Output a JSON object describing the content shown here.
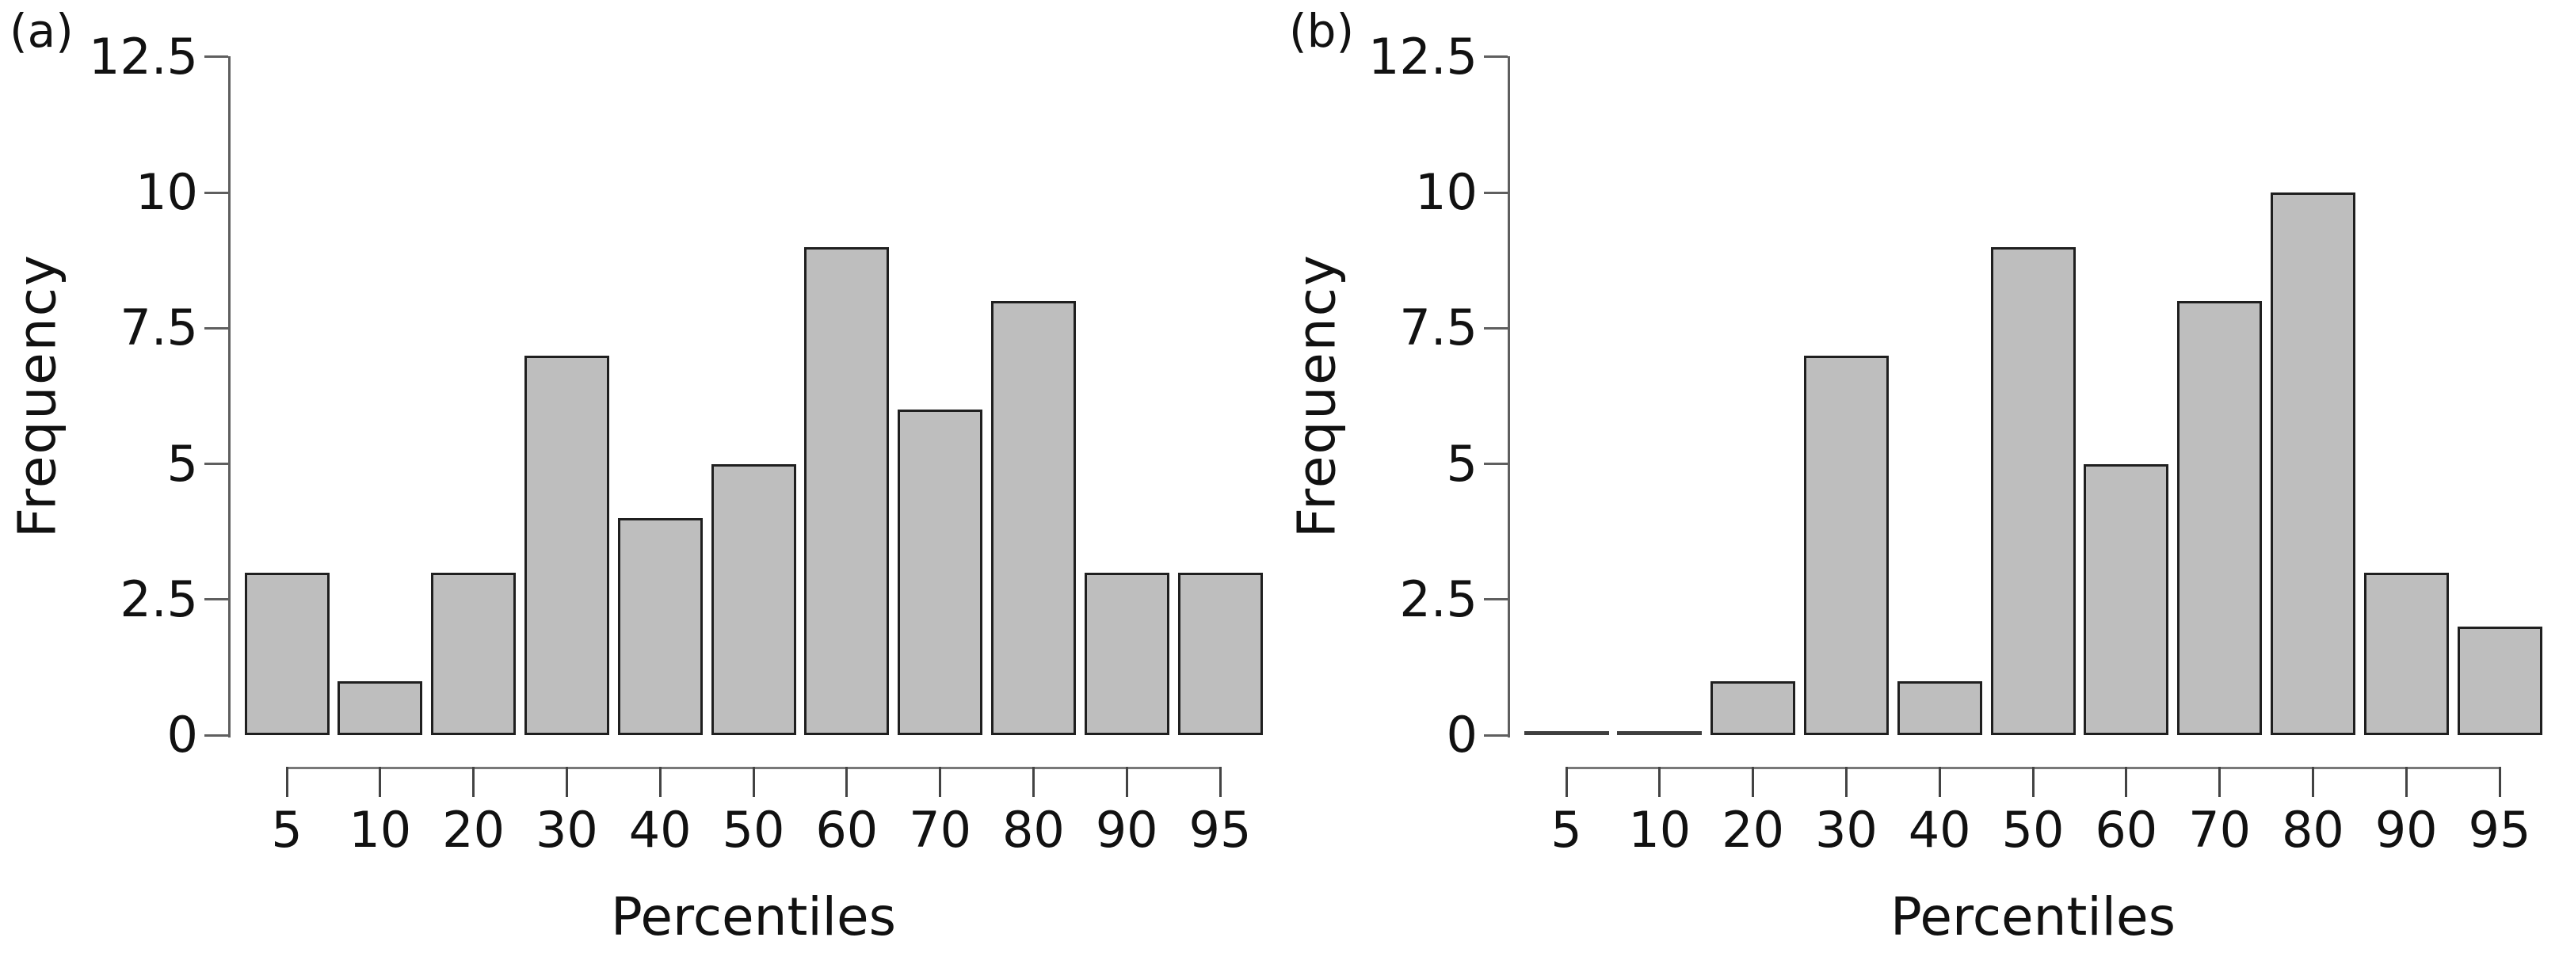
{
  "figure": {
    "colors": {
      "bar_fill": "#bebebe",
      "bar_border": "#1f1f1f",
      "axis_line": "#5f5f5f",
      "x_axis_line": "#787878",
      "tick": "#434343",
      "text": "#111111",
      "background": "#ffffff"
    }
  },
  "chart_data": [
    {
      "type": "bar",
      "panel_label": "(a)",
      "title": "",
      "xlabel": "Percentiles",
      "ylabel": "Frequency",
      "categories": [
        "5",
        "10",
        "20",
        "30",
        "40",
        "50",
        "60",
        "70",
        "80",
        "90",
        "95"
      ],
      "values": [
        3,
        1,
        3,
        7,
        4,
        5,
        9,
        6,
        8,
        3,
        3
      ],
      "ytick_labels": [
        "0",
        "2.5",
        "5",
        "7.5",
        "10",
        "12.5"
      ],
      "yticks": [
        0,
        2.5,
        5,
        7.5,
        10,
        12.5
      ],
      "ylim": [
        0,
        12.5
      ],
      "grid": false,
      "legend": "none"
    },
    {
      "type": "bar",
      "panel_label": "(b)",
      "title": "",
      "xlabel": "Percentiles",
      "ylabel": "Frequency",
      "categories": [
        "5",
        "10",
        "20",
        "30",
        "40",
        "50",
        "60",
        "70",
        "80",
        "90",
        "95"
      ],
      "values": [
        0,
        0,
        1,
        7,
        1,
        9,
        5,
        8,
        10,
        3,
        2
      ],
      "ytick_labels": [
        "0",
        "2.5",
        "5",
        "7.5",
        "10",
        "12.5"
      ],
      "yticks": [
        0,
        2.5,
        5,
        7.5,
        10,
        12.5
      ],
      "ylim": [
        0,
        12.5
      ],
      "grid": false,
      "legend": "none"
    }
  ]
}
